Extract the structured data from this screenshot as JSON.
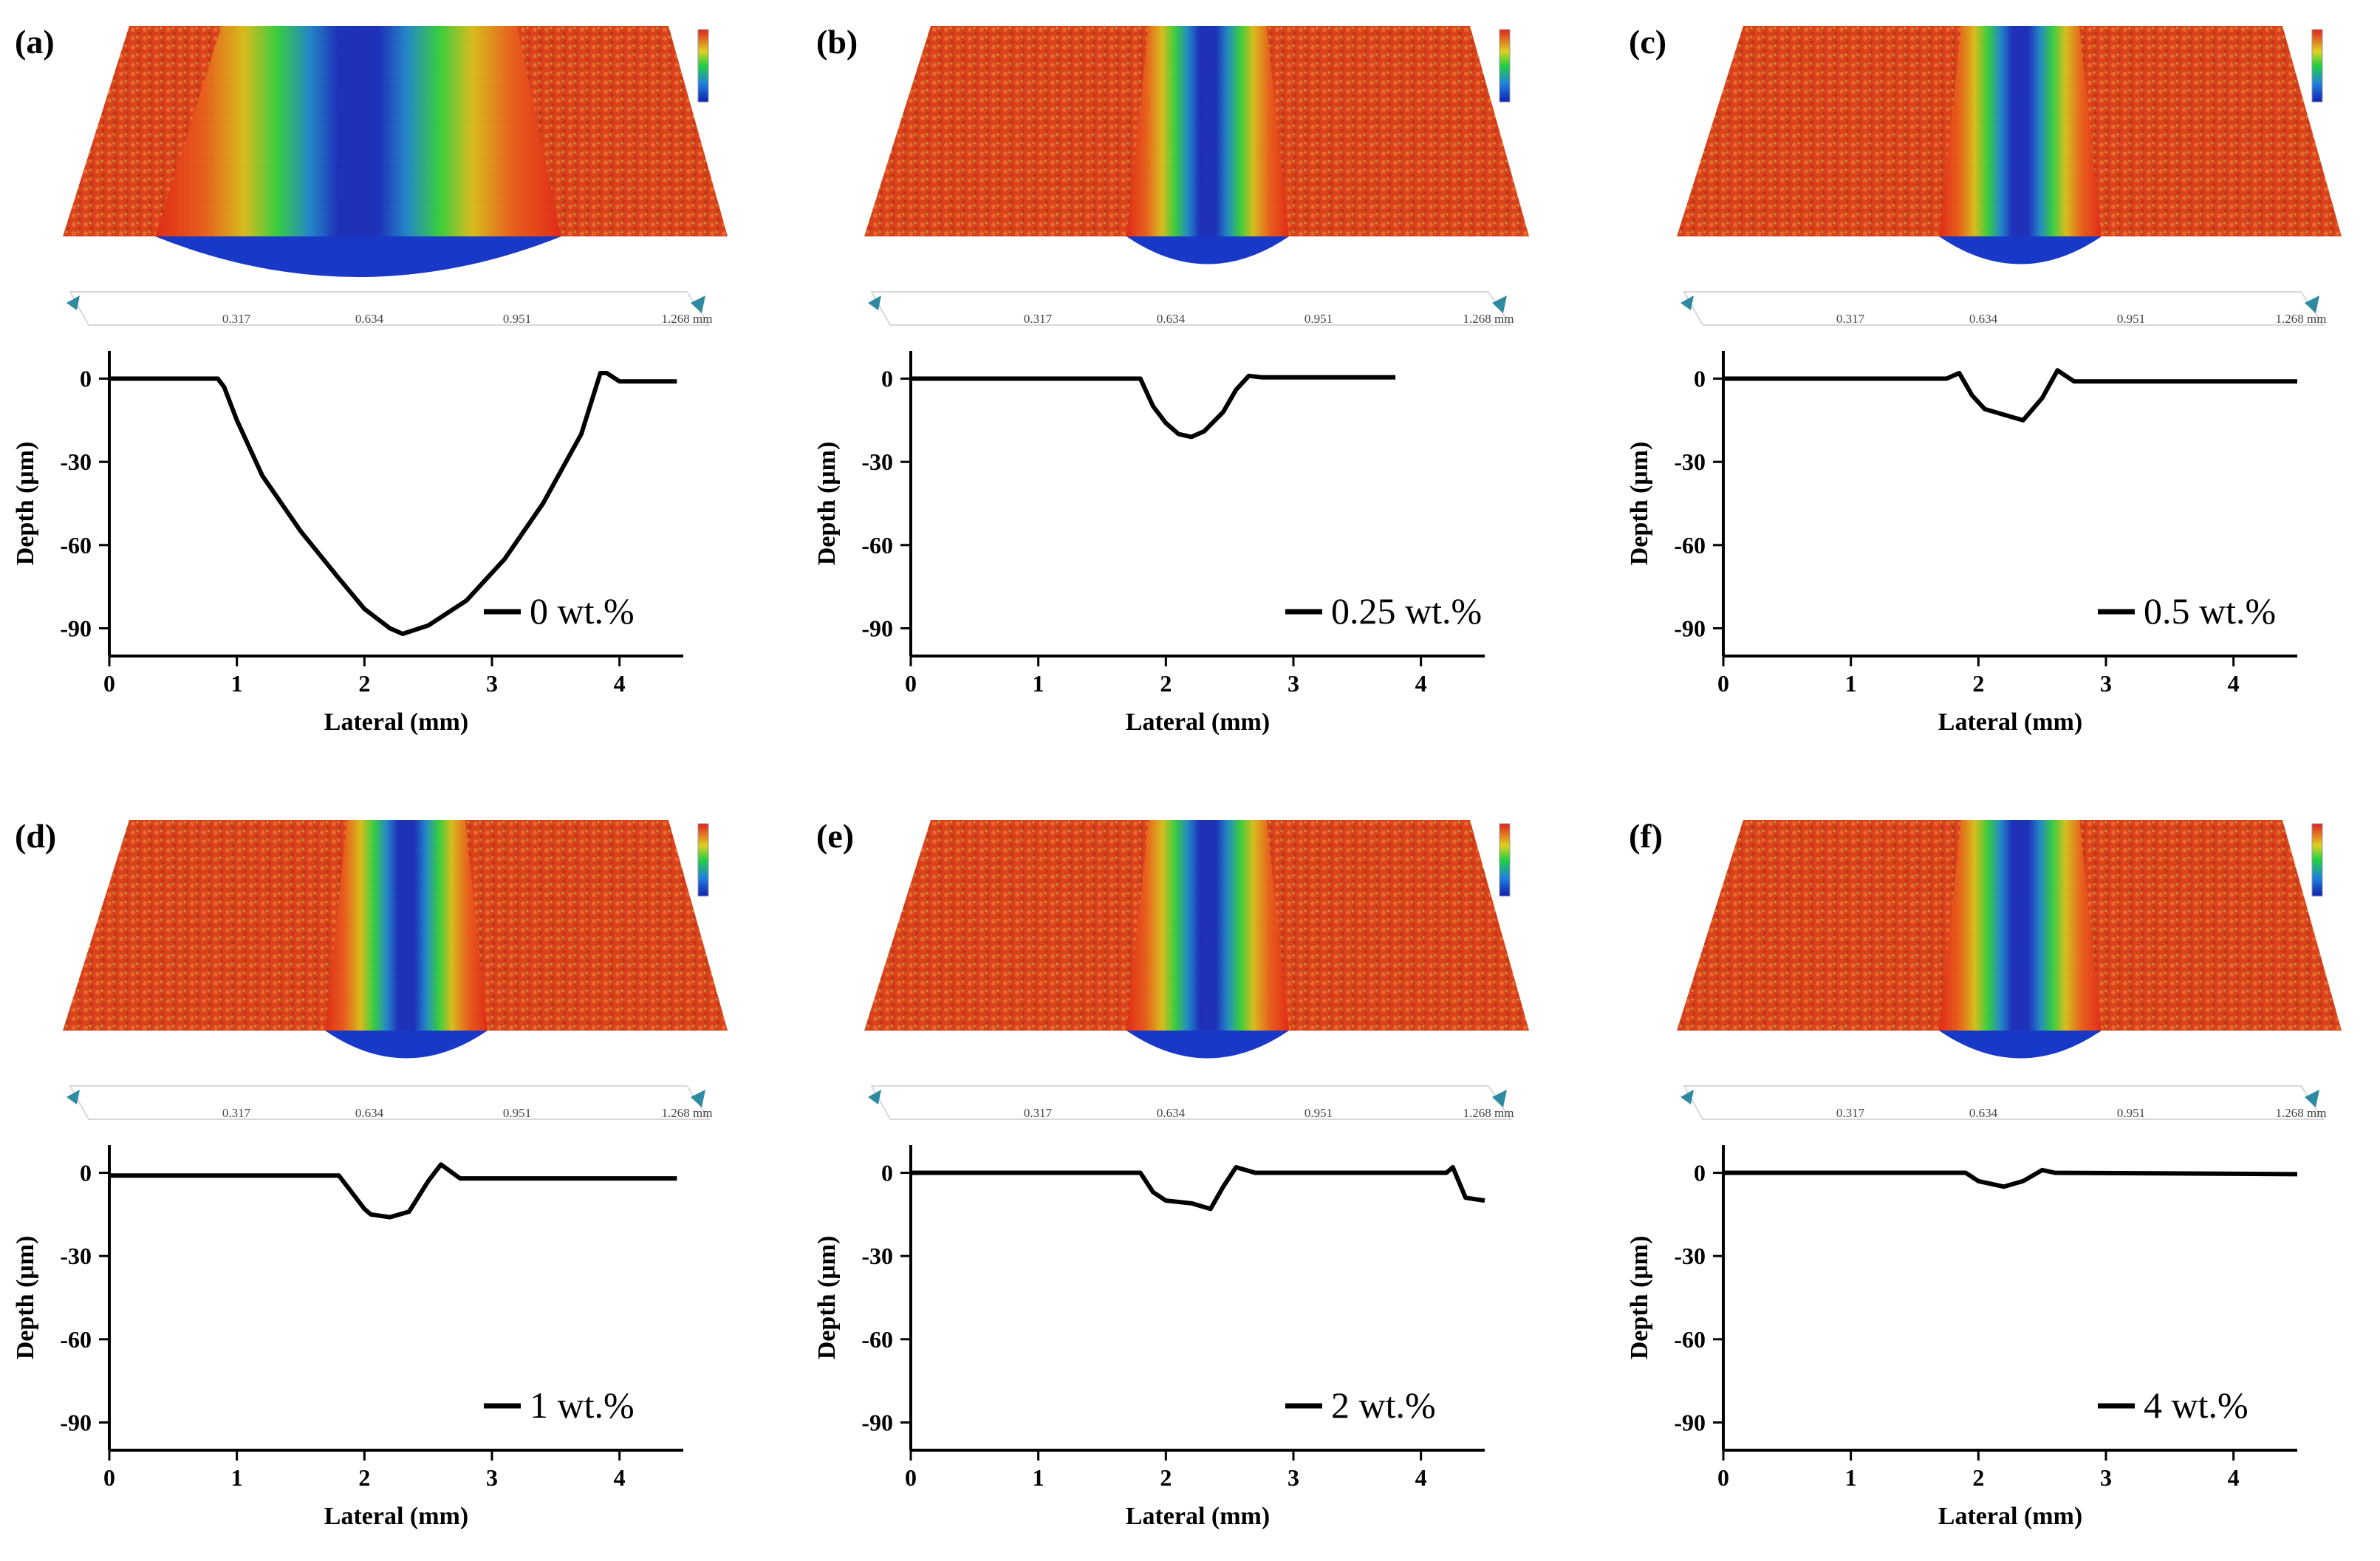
{
  "figure": {
    "scan_axis_ticks": [
      "0.317",
      "0.634",
      "0.951",
      "1.268 mm"
    ]
  },
  "chart_data": [
    {
      "type": "line",
      "panel_label": "(a)",
      "legend": "0 wt.%",
      "xlabel": "Lateral (mm)",
      "ylabel": "Depth (μm)",
      "xlim": [
        0,
        4.5
      ],
      "ylim": [
        -100,
        10
      ],
      "xticks": [
        0,
        1,
        2,
        3,
        4
      ],
      "yticks": [
        0,
        -30,
        -60,
        -90
      ],
      "series": [
        {
          "name": "0 wt.%",
          "x": [
            0,
            0.85,
            0.9,
            1.0,
            1.2,
            1.5,
            1.8,
            2.0,
            2.2,
            2.3,
            2.5,
            2.8,
            3.1,
            3.4,
            3.7,
            3.85,
            3.9,
            4.0,
            4.45
          ],
          "y": [
            0,
            0,
            -3,
            -15,
            -35,
            -55,
            -72,
            -83,
            -90,
            -92,
            -89,
            -80,
            -65,
            -45,
            -20,
            2,
            2,
            -1,
            -1
          ]
        }
      ]
    },
    {
      "type": "line",
      "panel_label": "(b)",
      "legend": "0.25 wt.%",
      "xlabel": "Lateral (mm)",
      "ylabel": "Depth (μm)",
      "xlim": [
        0,
        4.5
      ],
      "ylim": [
        -100,
        10
      ],
      "xticks": [
        0,
        1,
        2,
        3,
        4
      ],
      "yticks": [
        0,
        -30,
        -60,
        -90
      ],
      "series": [
        {
          "name": "0.25 wt.%",
          "x": [
            0,
            1.8,
            1.9,
            2.0,
            2.1,
            2.2,
            2.3,
            2.45,
            2.55,
            2.65,
            2.75,
            3.8
          ],
          "y": [
            0,
            0,
            -10,
            -16,
            -20,
            -21,
            -19,
            -12,
            -4,
            1,
            0.5,
            0.5
          ]
        }
      ]
    },
    {
      "type": "line",
      "panel_label": "(c)",
      "legend": "0.5 wt.%",
      "xlabel": "Lateral (mm)",
      "ylabel": "Depth (μm)",
      "xlim": [
        0,
        4.5
      ],
      "ylim": [
        -100,
        10
      ],
      "xticks": [
        0,
        1,
        2,
        3,
        4
      ],
      "yticks": [
        0,
        -30,
        -60,
        -90
      ],
      "series": [
        {
          "name": "0.5 wt.%",
          "x": [
            0,
            1.75,
            1.85,
            1.95,
            2.05,
            2.2,
            2.35,
            2.5,
            2.62,
            2.75,
            4.5
          ],
          "y": [
            0,
            0,
            2,
            -6,
            -11,
            -13,
            -15,
            -7,
            3,
            -1,
            -1
          ]
        }
      ]
    },
    {
      "type": "line",
      "panel_label": "(d)",
      "legend": "1 wt.%",
      "xlabel": "Lateral (mm)",
      "ylabel": "Depth (μm)",
      "xlim": [
        0,
        4.5
      ],
      "ylim": [
        -100,
        10
      ],
      "xticks": [
        0,
        1,
        2,
        3,
        4
      ],
      "yticks": [
        0,
        -30,
        -60,
        -90
      ],
      "series": [
        {
          "name": "1 wt.%",
          "x": [
            0,
            1.8,
            1.9,
            2.0,
            2.05,
            2.2,
            2.35,
            2.5,
            2.6,
            2.75,
            4.45
          ],
          "y": [
            -1,
            -1,
            -7,
            -13,
            -15,
            -16,
            -14,
            -3,
            3,
            -2,
            -2
          ]
        }
      ]
    },
    {
      "type": "line",
      "panel_label": "(e)",
      "legend": "2 wt.%",
      "xlabel": "Lateral (mm)",
      "ylabel": "Depth (μm)",
      "xlim": [
        0,
        4.5
      ],
      "ylim": [
        -100,
        10
      ],
      "xticks": [
        0,
        1,
        2,
        3,
        4
      ],
      "yticks": [
        0,
        -30,
        -60,
        -90
      ],
      "series": [
        {
          "name": "2 wt.%",
          "x": [
            0,
            1.8,
            1.9,
            2.0,
            2.2,
            2.35,
            2.45,
            2.55,
            2.7,
            4.2,
            4.25,
            4.35,
            4.5
          ],
          "y": [
            0,
            0,
            -7,
            -10,
            -11,
            -13,
            -5,
            2,
            0,
            0,
            2,
            -9,
            -10
          ]
        }
      ]
    },
    {
      "type": "line",
      "panel_label": "(f)",
      "legend": "4 wt.%",
      "xlabel": "Lateral (mm)",
      "ylabel": "Depth (μm)",
      "xlim": [
        0,
        4.5
      ],
      "ylim": [
        -100,
        10
      ],
      "xticks": [
        0,
        1,
        2,
        3,
        4
      ],
      "yticks": [
        0,
        -30,
        -60,
        -90
      ],
      "series": [
        {
          "name": "4 wt.%",
          "x": [
            0,
            1.9,
            2.0,
            2.2,
            2.35,
            2.5,
            2.6,
            4.5
          ],
          "y": [
            0,
            0,
            -3,
            -5,
            -3,
            1,
            0,
            -0.5
          ]
        }
      ]
    }
  ]
}
